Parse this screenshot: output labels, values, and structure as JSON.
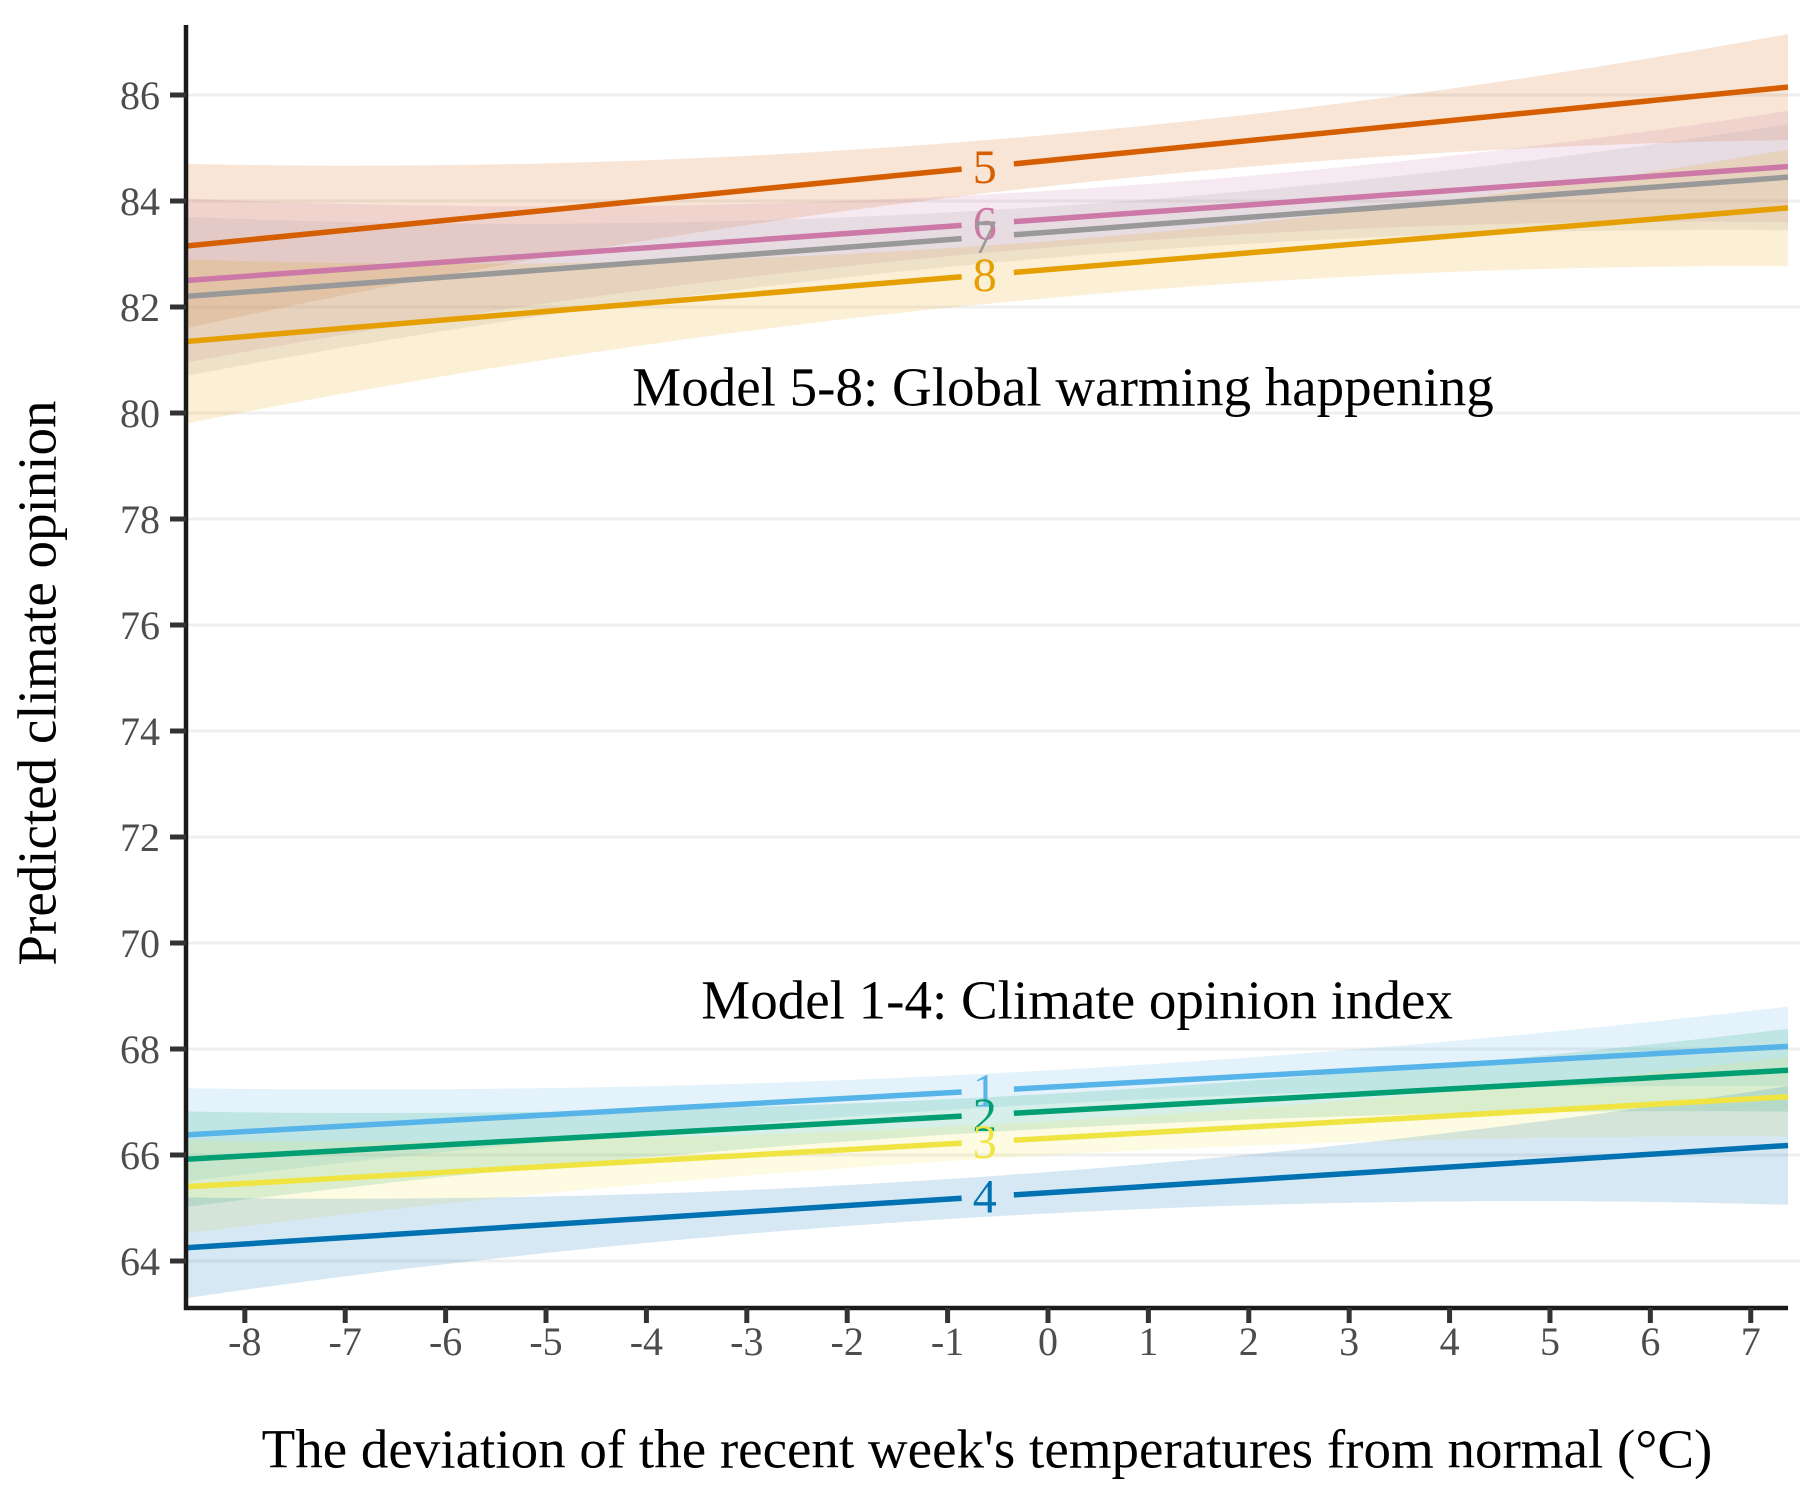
{
  "chart_data": {
    "type": "line",
    "xlabel": "The deviation of the recent week's temperatures from normal (°C)",
    "ylabel": "Predicted climate opinion",
    "xlim": [
      -8.586,
      7.371
    ],
    "ylim": [
      63.113,
      87.321
    ],
    "x_ticks": [
      -8,
      -7,
      -6,
      -5,
      -4,
      -3,
      -2,
      -1,
      0,
      1,
      2,
      3,
      4,
      5,
      6,
      7
    ],
    "y_ticks": [
      64,
      66,
      68,
      70,
      72,
      74,
      76,
      78,
      80,
      82,
      84,
      86
    ],
    "grid": "horizontal-major-only",
    "legend": "inline-numeric-labels-on-lines",
    "label_x": -0.63,
    "label_gap": [
      -0.86,
      -0.34
    ],
    "annotations": [
      {
        "text": "Model 5-8: Global warming happening",
        "x": 0.15,
        "y": 80.49
      },
      {
        "text": "Model 1-4: Climate opinion index",
        "x": 0.29,
        "y": 68.92
      }
    ],
    "series": [
      {
        "label": "5",
        "color": "#D55E00",
        "y_start": 83.15,
        "y_end": 86.15,
        "ci_halfwidth": [
          1.55,
          0.5,
          1.0
        ]
      },
      {
        "label": "6",
        "color": "#CC79A7",
        "y_start": 82.5,
        "y_end": 84.65,
        "ci_halfwidth": [
          1.55,
          0.55,
          1.05
        ]
      },
      {
        "label": "7",
        "color": "#999999",
        "y_start": 82.2,
        "y_end": 84.45,
        "ci_halfwidth": [
          1.5,
          0.5,
          1.0
        ]
      },
      {
        "label": "8",
        "color": "#E69F00",
        "y_start": 81.35,
        "y_end": 83.87,
        "ci_halfwidth": [
          1.55,
          0.55,
          1.1
        ]
      },
      {
        "label": "1",
        "color": "#56B4E9",
        "y_start": 66.38,
        "y_end": 68.05,
        "ci_halfwidth": [
          0.88,
          0.32,
          0.75
        ]
      },
      {
        "label": "2",
        "color": "#009E73",
        "y_start": 65.92,
        "y_end": 67.6,
        "ci_halfwidth": [
          0.9,
          0.33,
          0.78
        ]
      },
      {
        "label": "3",
        "color": "#F0E442",
        "y_start": 65.4,
        "y_end": 67.1,
        "ci_halfwidth": [
          0.88,
          0.32,
          0.75
        ]
      },
      {
        "label": "4",
        "color": "#0072B2",
        "y_start": 64.25,
        "y_end": 66.18,
        "ci_halfwidth": [
          0.95,
          0.38,
          1.12
        ]
      }
    ],
    "style": {
      "axis_color": "#1a1a1a",
      "tick_color": "#333333",
      "tick_label_color": "#4d4d4d",
      "grid_color": "#efefef",
      "text_color": "#000000",
      "band_opacity": 0.16
    }
  }
}
